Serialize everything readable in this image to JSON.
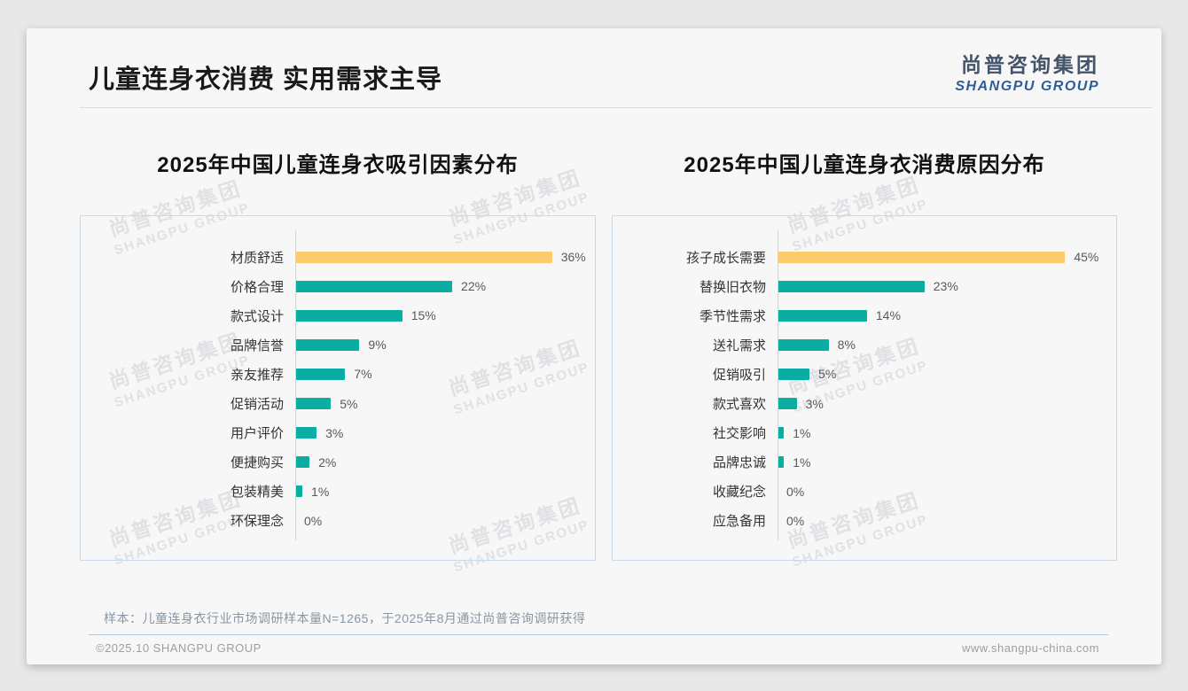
{
  "page": {
    "title": "儿童连身衣消费 实用需求主导",
    "sample_note": "样本：儿童连身衣行业市场调研样本量N=1265，于2025年8月通过尚普咨询调研获得",
    "footer_left": "©2025.10 SHANGPU GROUP",
    "footer_right": "www.shangpu-china.com"
  },
  "logo": {
    "cn": "尚普咨询集团",
    "en": "SHANGPU GROUP"
  },
  "watermark": {
    "line1": "尚普咨询集团",
    "line2": "SHANGPU GROUP"
  },
  "colors": {
    "bar": "#0baca1",
    "highlight_bar": "#facc6b",
    "logo_cn": "#44546a",
    "logo_en": "#2f5d97"
  },
  "chart_data": [
    {
      "type": "bar",
      "orientation": "horizontal",
      "title": "2025年中国儿童连身衣吸引因素分布",
      "categories": [
        "材质舒适",
        "价格合理",
        "款式设计",
        "品牌信誉",
        "亲友推荐",
        "促销活动",
        "用户评价",
        "便捷购买",
        "包装精美",
        "环保理念"
      ],
      "values": [
        36,
        22,
        15,
        9,
        7,
        5,
        3,
        2,
        1,
        0
      ],
      "unit": "%",
      "highlight_index": 0,
      "xlim": [
        0,
        42
      ],
      "grid": false,
      "legend": false
    },
    {
      "type": "bar",
      "orientation": "horizontal",
      "title": "2025年中国儿童连身衣消费原因分布",
      "categories": [
        "孩子成长需要",
        "替换旧衣物",
        "季节性需求",
        "送礼需求",
        "促销吸引",
        "款式喜欢",
        "社交影响",
        "品牌忠诚",
        "收藏纪念",
        "应急备用"
      ],
      "values": [
        45,
        23,
        14,
        8,
        5,
        3,
        1,
        1,
        0,
        0
      ],
      "unit": "%",
      "highlight_index": 0,
      "xlim": [
        0,
        53
      ],
      "grid": false,
      "legend": false
    }
  ]
}
